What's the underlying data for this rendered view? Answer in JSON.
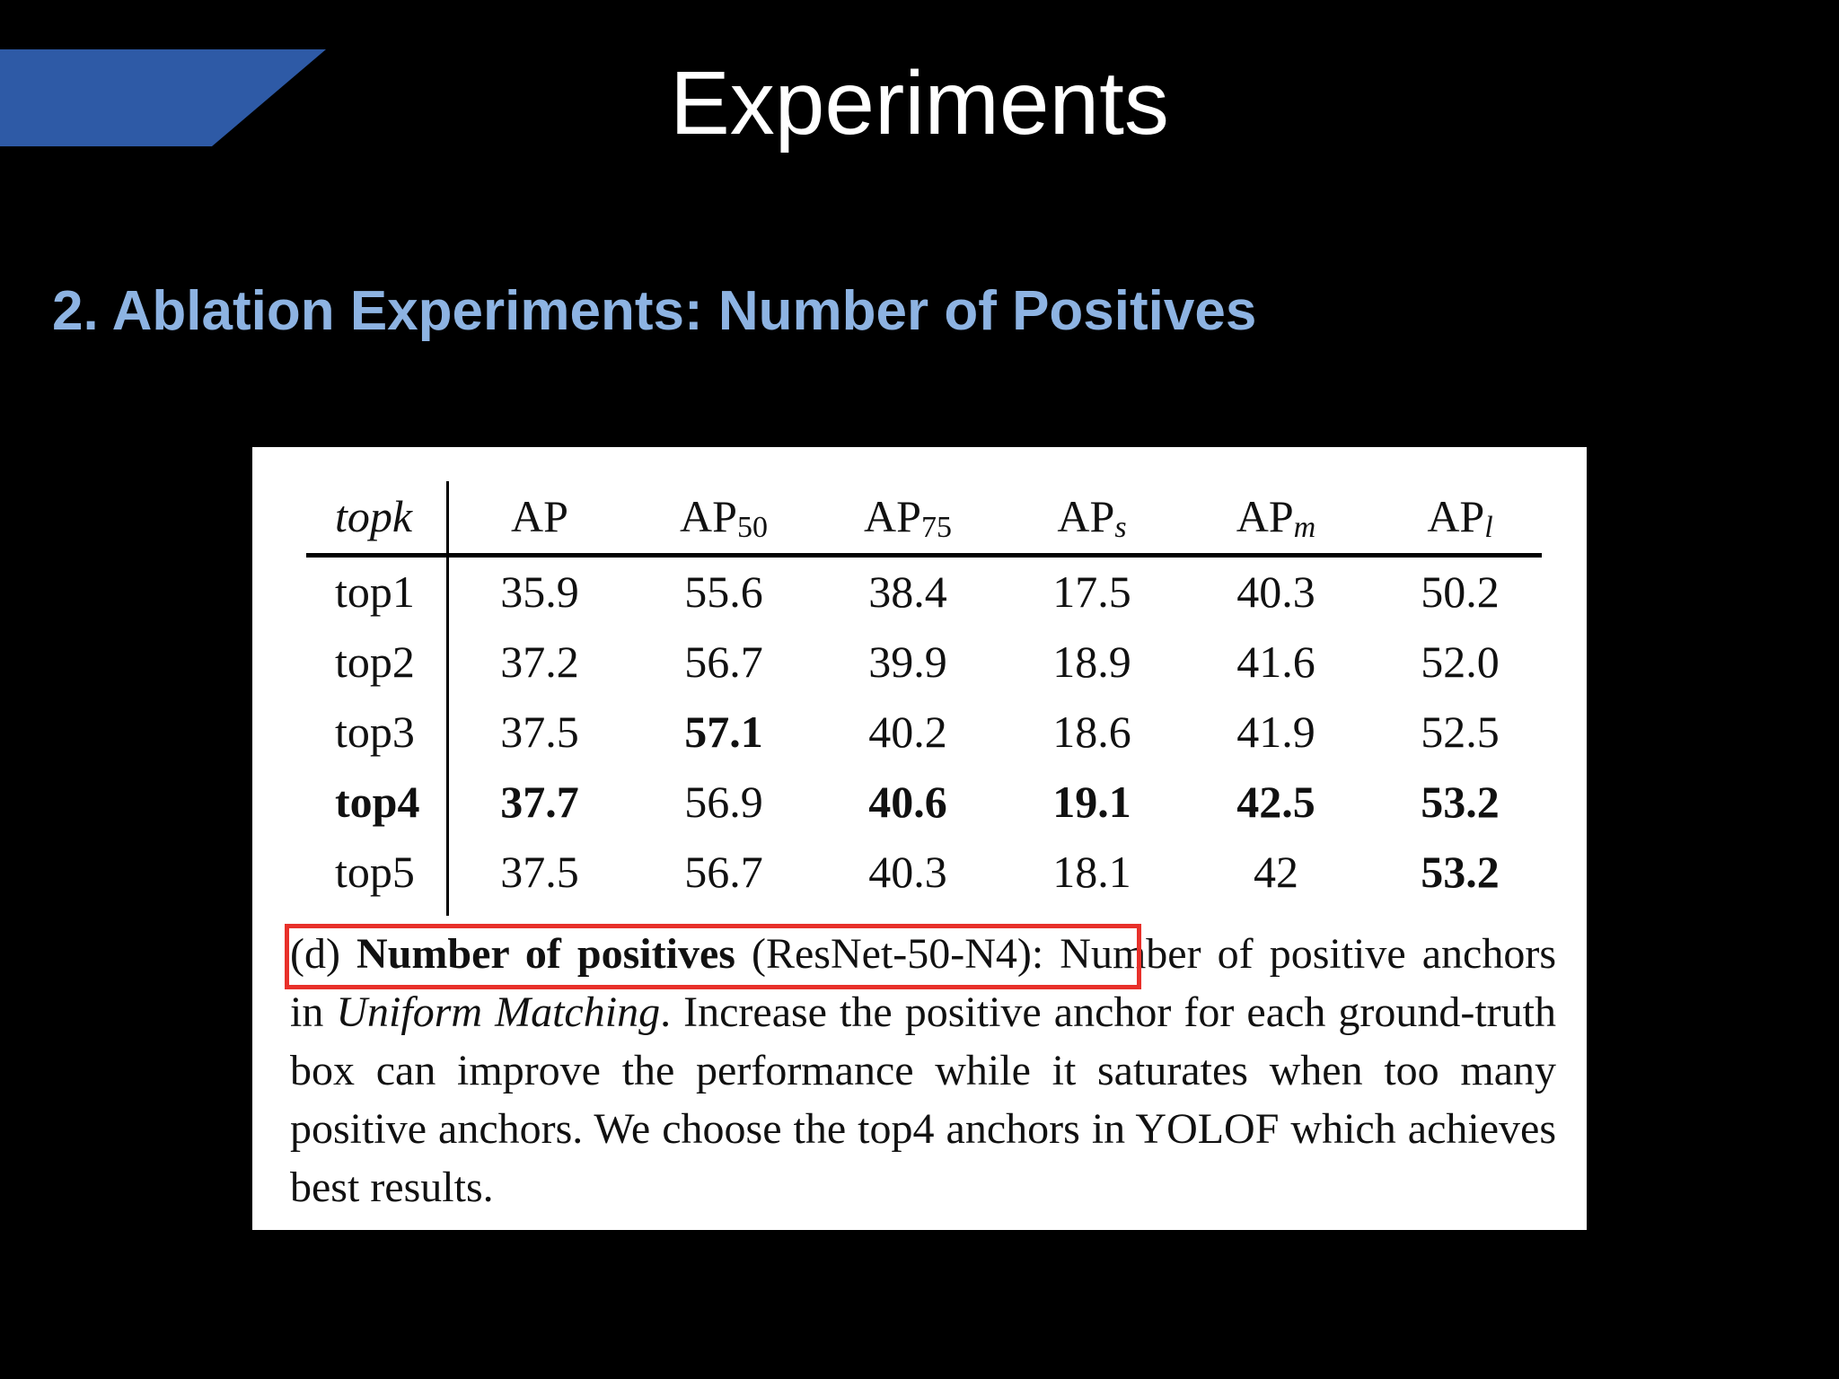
{
  "slide": {
    "title": "Experiments",
    "section_heading": "2. Ablation Experiments: Number of Positives",
    "accent_color": "#2e5aa6"
  },
  "table": {
    "headers": [
      "topk",
      "AP",
      "AP50",
      "AP75",
      "APs",
      "APm",
      "APl"
    ],
    "header_parts": [
      {
        "base": "topk",
        "sub": ""
      },
      {
        "base": "AP",
        "sub": ""
      },
      {
        "base": "AP",
        "sub": "50"
      },
      {
        "base": "AP",
        "sub": "75"
      },
      {
        "base": "AP",
        "sub": "s"
      },
      {
        "base": "AP",
        "sub": "m"
      },
      {
        "base": "AP",
        "sub": "l"
      }
    ],
    "rows": [
      {
        "label": "top1",
        "values": [
          "35.9",
          "55.6",
          "38.4",
          "17.5",
          "40.3",
          "50.2"
        ]
      },
      {
        "label": "top2",
        "values": [
          "37.2",
          "56.7",
          "39.9",
          "18.9",
          "41.6",
          "52.0"
        ]
      },
      {
        "label": "top3",
        "values": [
          "37.5",
          "57.1",
          "40.2",
          "18.6",
          "41.9",
          "52.5"
        ]
      },
      {
        "label": "top4",
        "values": [
          "37.7",
          "56.9",
          "40.6",
          "19.1",
          "42.5",
          "53.2"
        ]
      },
      {
        "label": "top5",
        "values": [
          "37.5",
          "56.7",
          "40.3",
          "18.1",
          "42",
          "53.2"
        ]
      }
    ]
  },
  "caption": {
    "prefix": "(d) ",
    "bold_title": "Number of positives",
    "paren": " (ResNet-50-N4):",
    "text1": " Number of positive anchors in ",
    "italic": "Uniform Matching",
    "text2": ". Increase the positive anchor for each ground-truth box can improve the performance while it saturates when too many positive anchors. We choose the top4 anchors in YOLOF which achieves best results.",
    "highlight_color": "#e8302a"
  }
}
